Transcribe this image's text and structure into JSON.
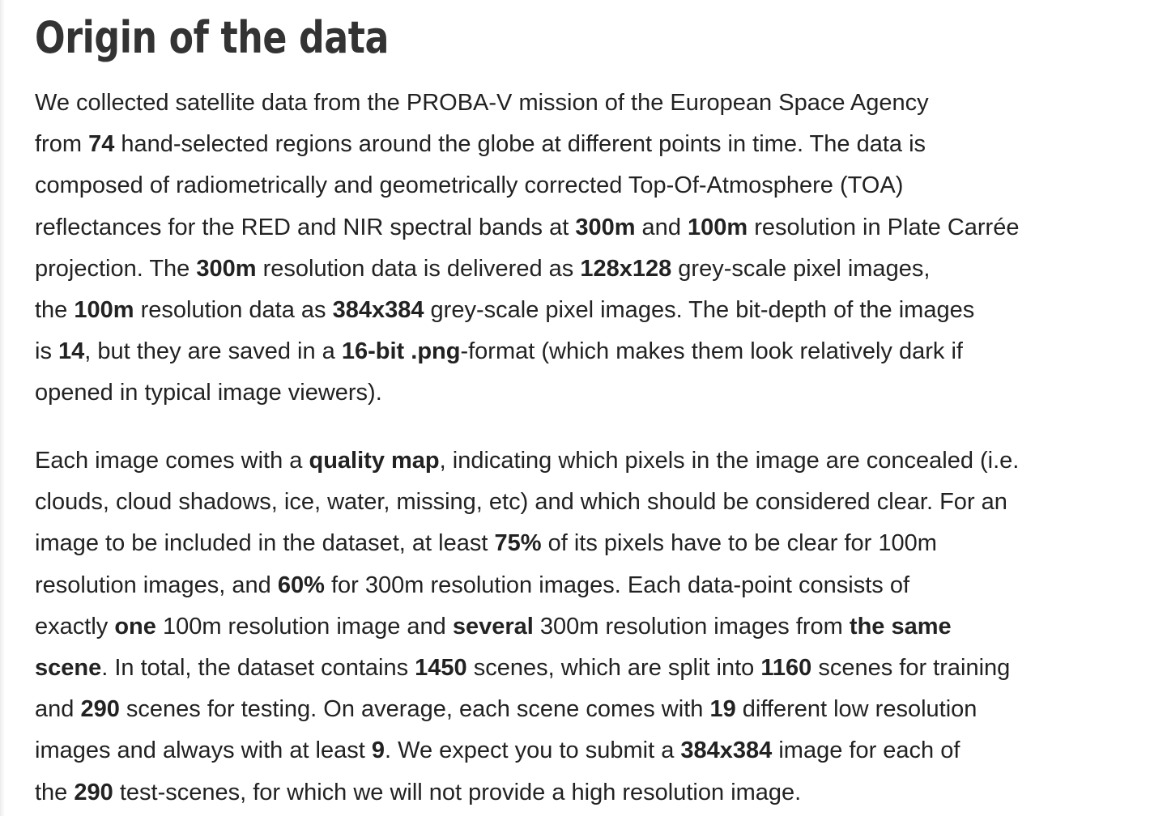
{
  "heading": "Origin of the data",
  "paragraphs": [
    {
      "lines": [
        [
          {
            "t": "We collected satellite data from the PROBA-V mission of the European Space Agency"
          }
        ],
        [
          {
            "t": "from "
          },
          {
            "t": "74",
            "b": true
          },
          {
            "t": " hand-selected regions around the globe at different points in time. The data is"
          }
        ],
        [
          {
            "t": "composed of radiometrically and geometrically corrected Top-Of-Atmosphere (TOA)"
          }
        ],
        [
          {
            "t": "reflectances for the RED and NIR spectral bands at "
          },
          {
            "t": "300m",
            "b": true
          },
          {
            "t": " and "
          },
          {
            "t": "100m",
            "b": true
          },
          {
            "t": " resolution in Plate Carrée"
          }
        ],
        [
          {
            "t": "projection. The "
          },
          {
            "t": "300m",
            "b": true
          },
          {
            "t": " resolution data is delivered as "
          },
          {
            "t": "128x128",
            "b": true
          },
          {
            "t": " grey-scale pixel images,"
          }
        ],
        [
          {
            "t": "the "
          },
          {
            "t": "100m",
            "b": true
          },
          {
            "t": " resolution data as "
          },
          {
            "t": "384x384",
            "b": true
          },
          {
            "t": " grey-scale pixel images. The bit-depth of the images"
          }
        ],
        [
          {
            "t": "is "
          },
          {
            "t": "14",
            "b": true
          },
          {
            "t": ", but they are saved in a "
          },
          {
            "t": "16-bit .png",
            "b": true
          },
          {
            "t": "-format (which makes them look relatively dark if"
          }
        ],
        [
          {
            "t": "opened in typical image viewers)."
          }
        ]
      ]
    },
    {
      "lines": [
        [
          {
            "t": "Each image comes with a "
          },
          {
            "t": "quality map",
            "b": true
          },
          {
            "t": ", indicating which pixels in the image are concealed (i.e."
          }
        ],
        [
          {
            "t": "clouds, cloud shadows, ice, water, missing, etc) and which should be considered clear. For an"
          }
        ],
        [
          {
            "t": "image to be included in the dataset, at least "
          },
          {
            "t": "75%",
            "b": true
          },
          {
            "t": " of its pixels have to be clear for 100m"
          }
        ],
        [
          {
            "t": "resolution images, and "
          },
          {
            "t": "60%",
            "b": true
          },
          {
            "t": " for 300m resolution images. Each data-point consists of"
          }
        ],
        [
          {
            "t": "exactly "
          },
          {
            "t": "one",
            "b": true
          },
          {
            "t": " 100m resolution image and "
          },
          {
            "t": "several",
            "b": true
          },
          {
            "t": " 300m resolution images from "
          },
          {
            "t": "the same",
            "b": true
          }
        ],
        [
          {
            "t": "scene",
            "b": true
          },
          {
            "t": ". In total, the dataset contains "
          },
          {
            "t": "1450",
            "b": true
          },
          {
            "t": " scenes, which are split into "
          },
          {
            "t": "1160",
            "b": true
          },
          {
            "t": " scenes for training"
          }
        ],
        [
          {
            "t": "and "
          },
          {
            "t": "290",
            "b": true
          },
          {
            "t": " scenes for testing. On average, each scene comes with "
          },
          {
            "t": "19",
            "b": true
          },
          {
            "t": " different low resolution"
          }
        ],
        [
          {
            "t": "images and always with at least "
          },
          {
            "t": "9",
            "b": true
          },
          {
            "t": ". We expect you to submit a "
          },
          {
            "t": "384x384",
            "b": true
          },
          {
            "t": " image for each of"
          }
        ],
        [
          {
            "t": "the "
          },
          {
            "t": "290",
            "b": true
          },
          {
            "t": " test-scenes, for which we will not provide a high resolution image."
          }
        ]
      ]
    }
  ]
}
